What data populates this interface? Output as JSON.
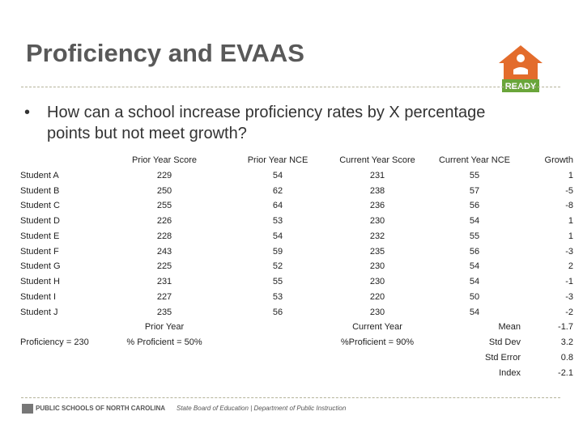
{
  "header": {
    "title": "Proficiency and EVAAS",
    "logo": "READY"
  },
  "bullet": "How can a school increase proficiency rates by X percentage points but not meet growth?",
  "table": {
    "columns": [
      "Prior Year Score",
      "Prior Year NCE",
      "Current Year Score",
      "Current Year NCE",
      "Growth"
    ],
    "rows": [
      [
        "Student A",
        229,
        54,
        231,
        55,
        1
      ],
      [
        "Student B",
        250,
        62,
        238,
        57,
        -5
      ],
      [
        "Student C",
        255,
        64,
        236,
        56,
        -8
      ],
      [
        "Student D",
        226,
        53,
        230,
        54,
        1
      ],
      [
        "Student E",
        228,
        54,
        232,
        55,
        1
      ],
      [
        "Student F",
        243,
        59,
        235,
        56,
        -3
      ],
      [
        "Student G",
        225,
        52,
        230,
        54,
        2
      ],
      [
        "Student H",
        231,
        55,
        230,
        54,
        -1
      ],
      [
        "Student I",
        227,
        53,
        220,
        50,
        -3
      ],
      [
        "Student J",
        235,
        56,
        230,
        54,
        -2
      ]
    ]
  },
  "summary": {
    "prior_label": "Prior Year",
    "current_label": "Current Year",
    "proficiency": "Proficiency = 230",
    "prior_proficient": "% Proficient = 50%",
    "current_proficient": "%Proficient = 90%",
    "stats": [
      {
        "label": "Mean",
        "value": -1.7
      },
      {
        "label": "Std Dev",
        "value": 3.2
      },
      {
        "label": "Std Error",
        "value": 0.8
      },
      {
        "label": "Index",
        "value": -2.1
      }
    ]
  },
  "footer": {
    "org": "PUBLIC SCHOOLS OF NORTH CAROLINA",
    "sub": "State Board of Education | Department of Public Instruction"
  }
}
